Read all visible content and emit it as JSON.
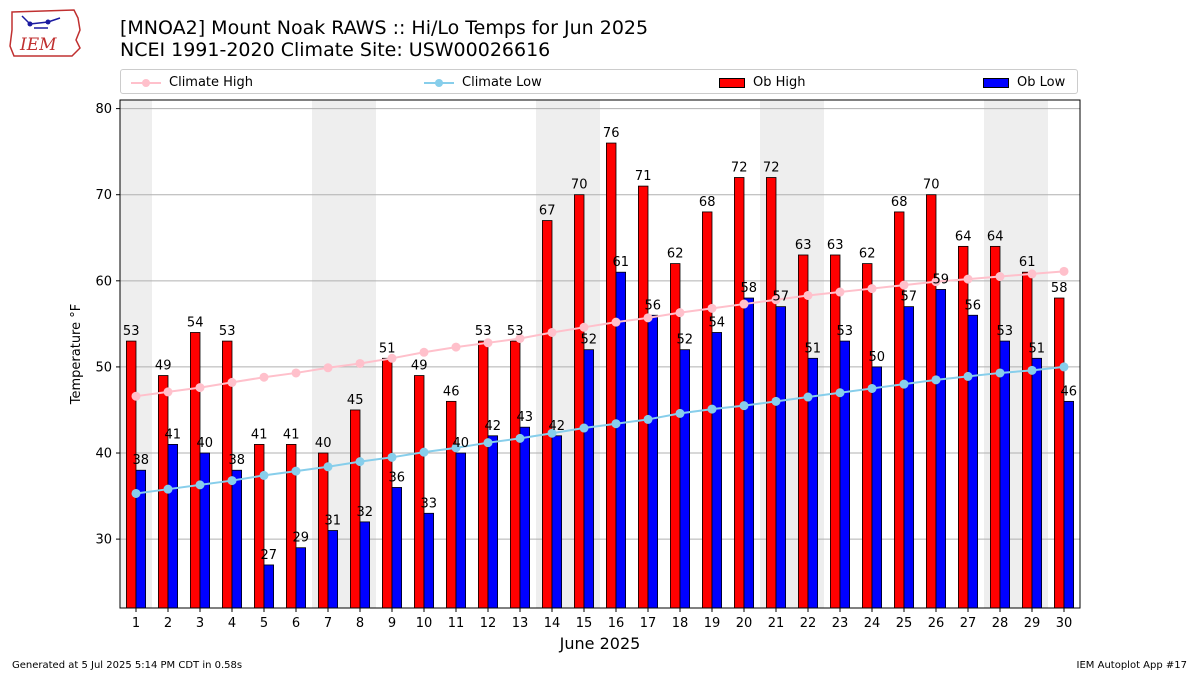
{
  "header": {
    "logo_text": "IEM",
    "title_line1": "[MNOA2] Mount Noak RAWS :: Hi/Lo Temps for Jun 2025",
    "title_line2": "NCEI 1991-2020 Climate Site: USW00026616"
  },
  "legend": {
    "climate_high": "Climate High",
    "climate_low": "Climate Low",
    "ob_high": "Ob High",
    "ob_low": "Ob Low"
  },
  "colors": {
    "ob_high": "#ff0000",
    "ob_low": "#0000ff",
    "climate_high": "#ffc0cb",
    "climate_low": "#87ceeb",
    "weekend_band": "#eeeeee",
    "grid": "#b0b0b0"
  },
  "footer": {
    "left": "Generated at 5 Jul 2025 5:14 PM CDT in 0.58s",
    "right": "IEM Autoplot App #17"
  },
  "chart_data": {
    "type": "bar",
    "xlabel": "June 2025",
    "ylabel": "Temperature °F",
    "ylim": [
      22,
      81
    ],
    "yticks": [
      30,
      40,
      50,
      60,
      70,
      80
    ],
    "categories": [
      "1",
      "2",
      "3",
      "4",
      "5",
      "6",
      "7",
      "8",
      "9",
      "10",
      "11",
      "12",
      "13",
      "14",
      "15",
      "16",
      "17",
      "18",
      "19",
      "20",
      "21",
      "22",
      "23",
      "24",
      "25",
      "26",
      "27",
      "28",
      "29",
      "30"
    ],
    "shaded_days": [
      1,
      7,
      8,
      14,
      15,
      21,
      22,
      28,
      29
    ],
    "grid": true,
    "legend_position": "top",
    "series": [
      {
        "name": "Ob High",
        "kind": "bar",
        "values": [
          53,
          49,
          54,
          53,
          41,
          41,
          40,
          45,
          51,
          49,
          46,
          53,
          53,
          67,
          70,
          76,
          71,
          62,
          68,
          72,
          72,
          63,
          63,
          62,
          68,
          70,
          64,
          64,
          61,
          58
        ]
      },
      {
        "name": "Ob Low",
        "kind": "bar",
        "values": [
          38,
          41,
          40,
          38,
          27,
          29,
          31,
          32,
          36,
          33,
          40,
          42,
          43,
          42,
          52,
          61,
          56,
          52,
          54,
          58,
          57,
          51,
          53,
          50,
          57,
          59,
          56,
          53,
          51,
          46
        ]
      },
      {
        "name": "Climate High",
        "kind": "line",
        "values": [
          46.6,
          47.1,
          47.6,
          48.2,
          48.8,
          49.3,
          49.9,
          50.4,
          51.0,
          51.7,
          52.3,
          52.8,
          53.3,
          54.0,
          54.6,
          55.2,
          55.7,
          56.3,
          56.8,
          57.3,
          57.8,
          58.3,
          58.7,
          59.1,
          59.5,
          59.9,
          60.2,
          60.5,
          60.8,
          61.1
        ]
      },
      {
        "name": "Climate Low",
        "kind": "line",
        "values": [
          35.3,
          35.8,
          36.3,
          36.8,
          37.4,
          37.9,
          38.4,
          39.0,
          39.5,
          40.1,
          40.6,
          41.2,
          41.7,
          42.3,
          42.9,
          43.4,
          43.9,
          44.6,
          45.1,
          45.5,
          46.0,
          46.5,
          47.0,
          47.5,
          48.0,
          48.5,
          48.9,
          49.3,
          49.6,
          50.0
        ]
      }
    ]
  }
}
